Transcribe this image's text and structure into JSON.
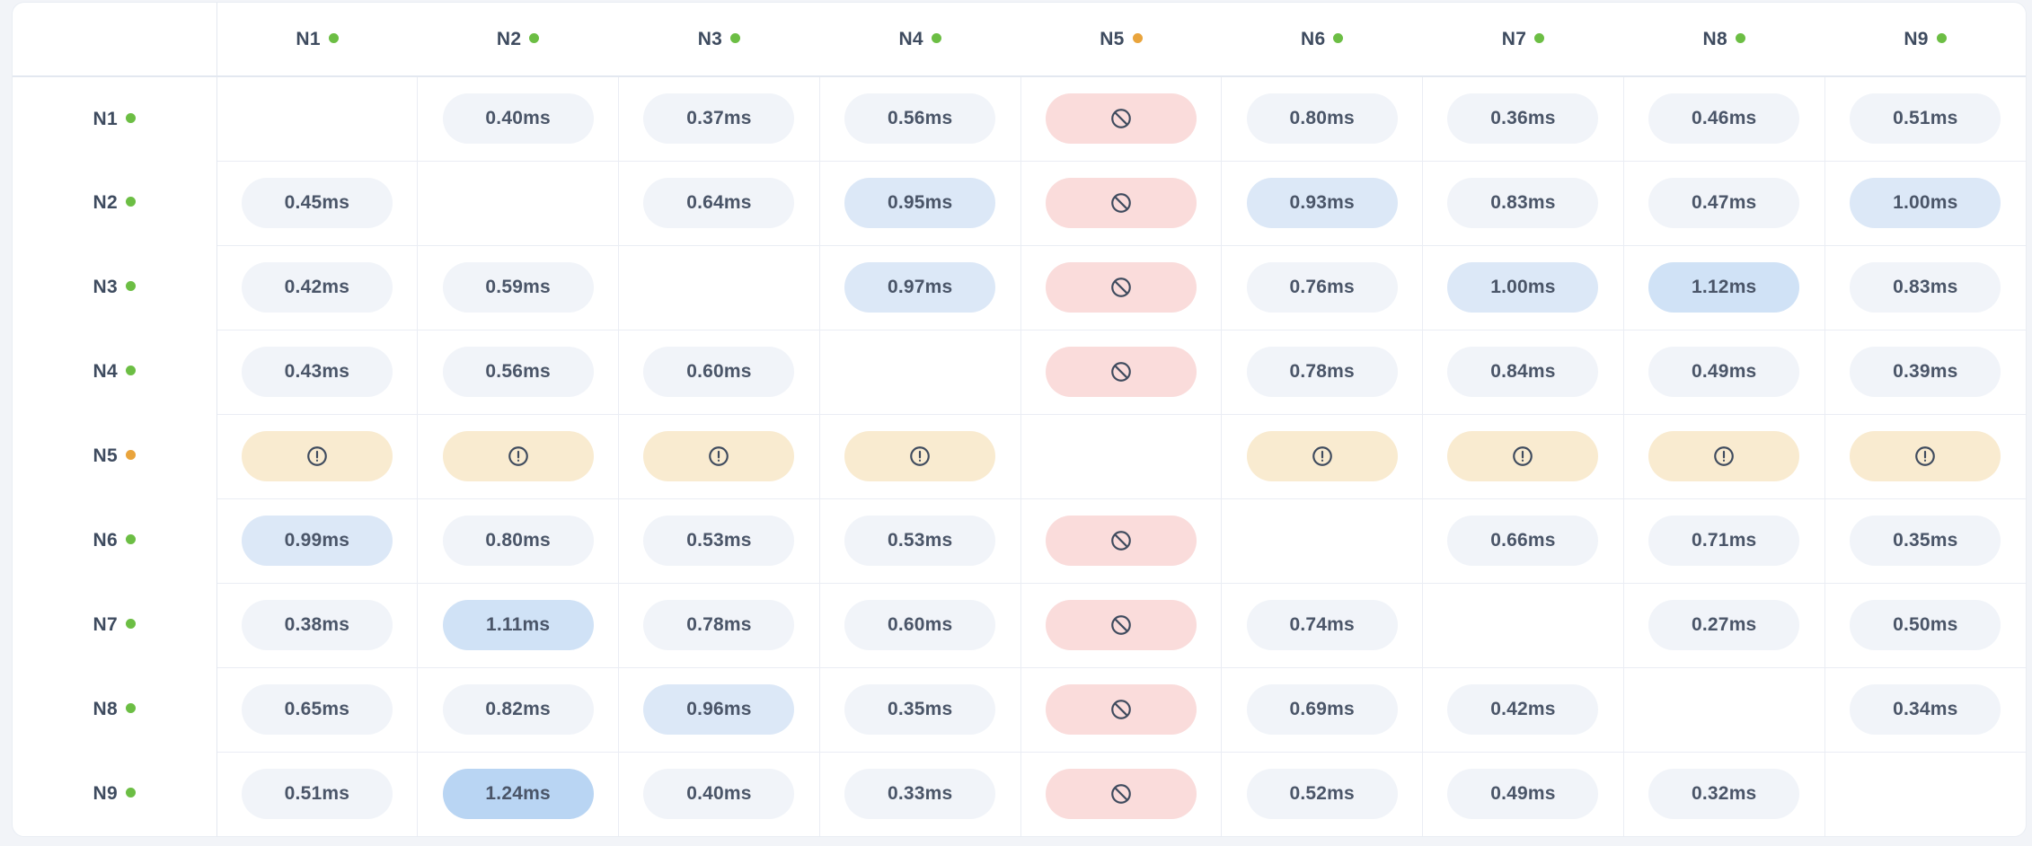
{
  "matrix": {
    "columns": [
      {
        "id": "N1",
        "status": "online"
      },
      {
        "id": "N2",
        "status": "online"
      },
      {
        "id": "N3",
        "status": "online"
      },
      {
        "id": "N4",
        "status": "online"
      },
      {
        "id": "N5",
        "status": "warning"
      },
      {
        "id": "N6",
        "status": "online"
      },
      {
        "id": "N7",
        "status": "online"
      },
      {
        "id": "N8",
        "status": "online"
      },
      {
        "id": "N9",
        "status": "online"
      }
    ],
    "rows": [
      {
        "node": "N1",
        "status": "online",
        "cells": [
          {
            "type": "self"
          },
          {
            "type": "latency",
            "value": "0.40ms",
            "tier": "default"
          },
          {
            "type": "latency",
            "value": "0.37ms",
            "tier": "default"
          },
          {
            "type": "latency",
            "value": "0.56ms",
            "tier": "default"
          },
          {
            "type": "blocked"
          },
          {
            "type": "latency",
            "value": "0.80ms",
            "tier": "default"
          },
          {
            "type": "latency",
            "value": "0.36ms",
            "tier": "default"
          },
          {
            "type": "latency",
            "value": "0.46ms",
            "tier": "default"
          },
          {
            "type": "latency",
            "value": "0.51ms",
            "tier": "default"
          }
        ]
      },
      {
        "node": "N2",
        "status": "online",
        "cells": [
          {
            "type": "latency",
            "value": "0.45ms",
            "tier": "default"
          },
          {
            "type": "self"
          },
          {
            "type": "latency",
            "value": "0.64ms",
            "tier": "default"
          },
          {
            "type": "latency",
            "value": "0.95ms",
            "tier": "elevated"
          },
          {
            "type": "blocked"
          },
          {
            "type": "latency",
            "value": "0.93ms",
            "tier": "elevated"
          },
          {
            "type": "latency",
            "value": "0.83ms",
            "tier": "default"
          },
          {
            "type": "latency",
            "value": "0.47ms",
            "tier": "default"
          },
          {
            "type": "latency",
            "value": "1.00ms",
            "tier": "elevated"
          }
        ]
      },
      {
        "node": "N3",
        "status": "online",
        "cells": [
          {
            "type": "latency",
            "value": "0.42ms",
            "tier": "default"
          },
          {
            "type": "latency",
            "value": "0.59ms",
            "tier": "default"
          },
          {
            "type": "self"
          },
          {
            "type": "latency",
            "value": "0.97ms",
            "tier": "elevated"
          },
          {
            "type": "blocked"
          },
          {
            "type": "latency",
            "value": "0.76ms",
            "tier": "default"
          },
          {
            "type": "latency",
            "value": "1.00ms",
            "tier": "elevated"
          },
          {
            "type": "latency",
            "value": "1.12ms",
            "tier": "high"
          },
          {
            "type": "latency",
            "value": "0.83ms",
            "tier": "default"
          }
        ]
      },
      {
        "node": "N4",
        "status": "online",
        "cells": [
          {
            "type": "latency",
            "value": "0.43ms",
            "tier": "default"
          },
          {
            "type": "latency",
            "value": "0.56ms",
            "tier": "default"
          },
          {
            "type": "latency",
            "value": "0.60ms",
            "tier": "default"
          },
          {
            "type": "self"
          },
          {
            "type": "blocked"
          },
          {
            "type": "latency",
            "value": "0.78ms",
            "tier": "default"
          },
          {
            "type": "latency",
            "value": "0.84ms",
            "tier": "default"
          },
          {
            "type": "latency",
            "value": "0.49ms",
            "tier": "default"
          },
          {
            "type": "latency",
            "value": "0.39ms",
            "tier": "default"
          }
        ]
      },
      {
        "node": "N5",
        "status": "warning",
        "cells": [
          {
            "type": "warning"
          },
          {
            "type": "warning"
          },
          {
            "type": "warning"
          },
          {
            "type": "warning"
          },
          {
            "type": "self"
          },
          {
            "type": "warning"
          },
          {
            "type": "warning"
          },
          {
            "type": "warning"
          },
          {
            "type": "warning"
          }
        ]
      },
      {
        "node": "N6",
        "status": "online",
        "cells": [
          {
            "type": "latency",
            "value": "0.99ms",
            "tier": "elevated"
          },
          {
            "type": "latency",
            "value": "0.80ms",
            "tier": "default"
          },
          {
            "type": "latency",
            "value": "0.53ms",
            "tier": "default"
          },
          {
            "type": "latency",
            "value": "0.53ms",
            "tier": "default"
          },
          {
            "type": "blocked"
          },
          {
            "type": "self"
          },
          {
            "type": "latency",
            "value": "0.66ms",
            "tier": "default"
          },
          {
            "type": "latency",
            "value": "0.71ms",
            "tier": "default"
          },
          {
            "type": "latency",
            "value": "0.35ms",
            "tier": "default"
          }
        ]
      },
      {
        "node": "N7",
        "status": "online",
        "cells": [
          {
            "type": "latency",
            "value": "0.38ms",
            "tier": "default"
          },
          {
            "type": "latency",
            "value": "1.11ms",
            "tier": "high"
          },
          {
            "type": "latency",
            "value": "0.78ms",
            "tier": "default"
          },
          {
            "type": "latency",
            "value": "0.60ms",
            "tier": "default"
          },
          {
            "type": "blocked"
          },
          {
            "type": "latency",
            "value": "0.74ms",
            "tier": "default"
          },
          {
            "type": "self"
          },
          {
            "type": "latency",
            "value": "0.27ms",
            "tier": "default"
          },
          {
            "type": "latency",
            "value": "0.50ms",
            "tier": "default"
          }
        ]
      },
      {
        "node": "N8",
        "status": "online",
        "cells": [
          {
            "type": "latency",
            "value": "0.65ms",
            "tier": "default"
          },
          {
            "type": "latency",
            "value": "0.82ms",
            "tier": "default"
          },
          {
            "type": "latency",
            "value": "0.96ms",
            "tier": "elevated"
          },
          {
            "type": "latency",
            "value": "0.35ms",
            "tier": "default"
          },
          {
            "type": "blocked"
          },
          {
            "type": "latency",
            "value": "0.69ms",
            "tier": "default"
          },
          {
            "type": "latency",
            "value": "0.42ms",
            "tier": "default"
          },
          {
            "type": "self"
          },
          {
            "type": "latency",
            "value": "0.34ms",
            "tier": "default"
          }
        ]
      },
      {
        "node": "N9",
        "status": "online",
        "cells": [
          {
            "type": "latency",
            "value": "0.51ms",
            "tier": "default"
          },
          {
            "type": "latency",
            "value": "1.24ms",
            "tier": "max"
          },
          {
            "type": "latency",
            "value": "0.40ms",
            "tier": "default"
          },
          {
            "type": "latency",
            "value": "0.33ms",
            "tier": "default"
          },
          {
            "type": "blocked"
          },
          {
            "type": "latency",
            "value": "0.52ms",
            "tier": "default"
          },
          {
            "type": "latency",
            "value": "0.49ms",
            "tier": "default"
          },
          {
            "type": "latency",
            "value": "0.32ms",
            "tier": "default"
          },
          {
            "type": "self"
          }
        ]
      }
    ]
  },
  "icons": {
    "blocked": "ban-icon",
    "warning": "alert-circle-icon",
    "online_dot": "status-dot-online",
    "warning_dot": "status-dot-warning"
  },
  "colors": {
    "page_bg": "#f2f4f8",
    "card_bg": "#ffffff",
    "grid_line": "#eaedf4",
    "divider_strong": "#e3e8f0",
    "pill_text": "#4a5568",
    "label_text": "#3e4b5f",
    "icon_stroke": "#3f4b5e",
    "dot_online": "#6cbe44",
    "dot_warning": "#e9a43c",
    "pill_tiers": {
      "default": "#f1f4f9",
      "elevated": "#dce8f7",
      "high": "#d0e2f6",
      "max": "#b9d5f3"
    },
    "pill_blocked_bg": "#fadcdb",
    "pill_warning_bg": "#f9ebd0"
  }
}
